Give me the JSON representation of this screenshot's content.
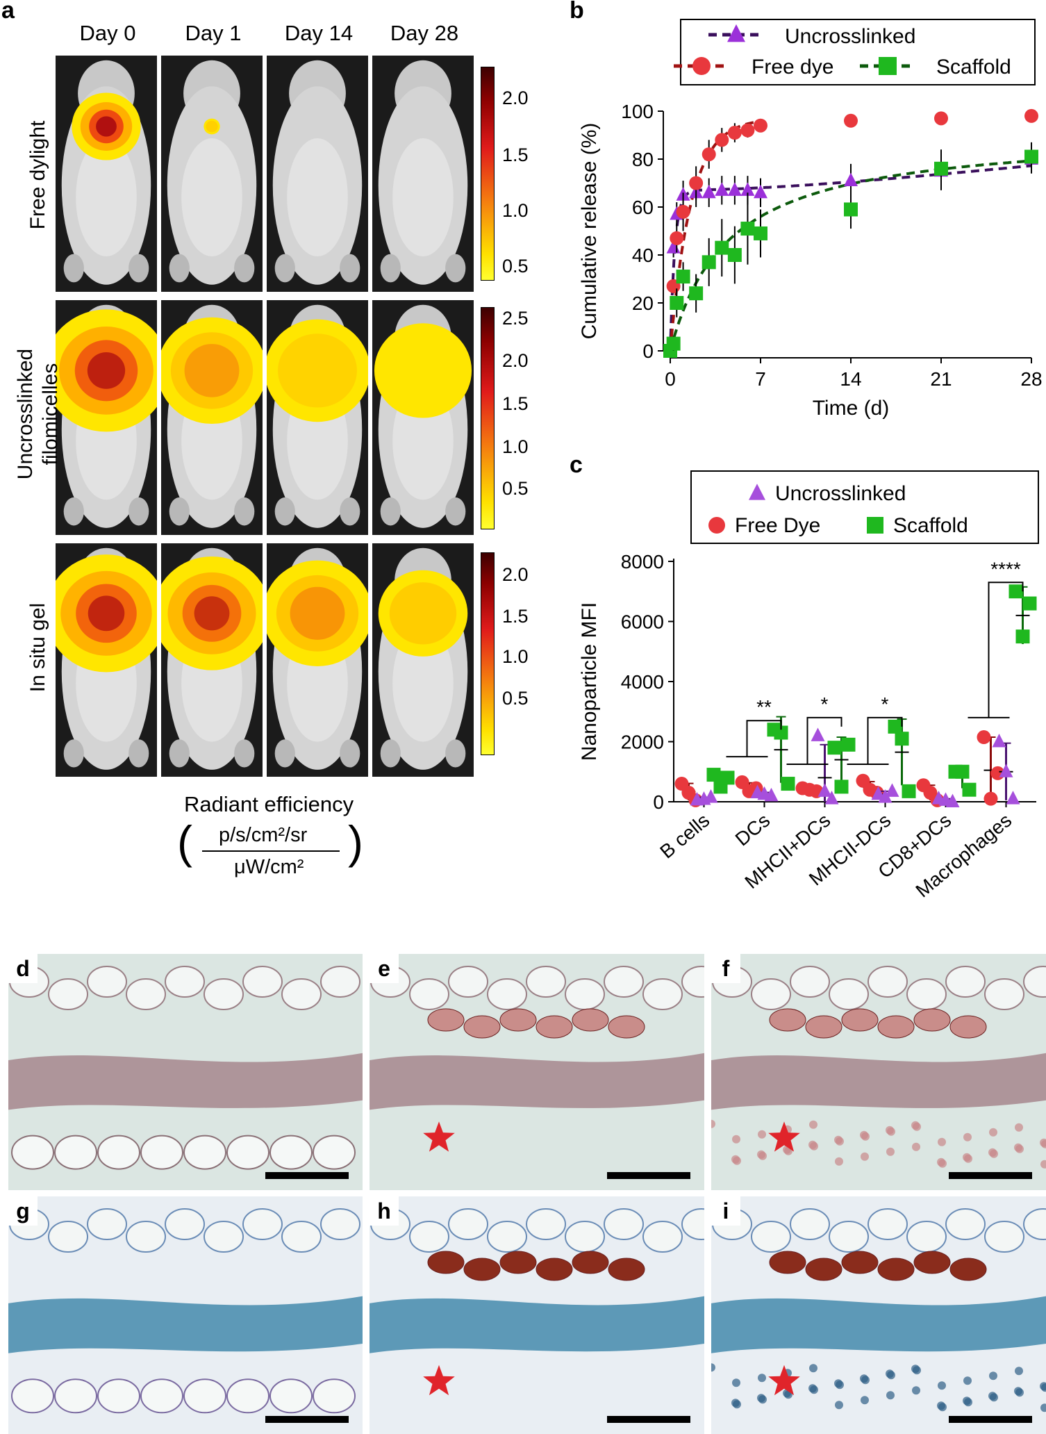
{
  "panel_labels": {
    "a": "a",
    "b": "b",
    "c": "c",
    "d": "d",
    "e": "e",
    "f": "f",
    "g": "g",
    "h": "h",
    "i": "i"
  },
  "panel_a": {
    "days": [
      "Day 0",
      "Day 1",
      "Day 14",
      "Day 28"
    ],
    "rows": [
      {
        "label_lines": [
          "Free dylight"
        ],
        "ticks": [
          "2.0",
          "1.5",
          "1.0",
          "0.5"
        ]
      },
      {
        "label_lines": [
          "Uncrosslinked",
          "filomicelles"
        ],
        "ticks": [
          "2.5",
          "2.0",
          "1.5",
          "1.0",
          "0.5"
        ]
      },
      {
        "label_lines": [
          "In situ gel"
        ],
        "ticks": [
          "2.0",
          "1.5",
          "1.0",
          "0.5"
        ]
      }
    ],
    "unit_title": "Radiant efficiency",
    "unit_numerator": "p/s/cm²/sr",
    "unit_denominator": "μW/cm²",
    "colormap": [
      "#3d0000",
      "#8b0000",
      "#e01b1b",
      "#f47a10",
      "#ffe100",
      "#ffff30"
    ]
  },
  "chart_data": [
    {
      "type": "line",
      "panel": "b",
      "xlabel": "Time (d)",
      "ylabel": "Cumulative release (%)",
      "xlim": [
        0,
        28
      ],
      "ylim": [
        0,
        100
      ],
      "xticks": [
        "0",
        "7",
        "14",
        "21",
        "28"
      ],
      "yticks": [
        "0",
        "20",
        "40",
        "60",
        "80",
        "100"
      ],
      "legend": [
        "Uncrosslinked",
        "Free dye",
        "Scaffold"
      ],
      "series": [
        {
          "name": "Uncrosslinked",
          "color": "#9b30d9",
          "line_color": "#3a0f5c",
          "marker": "triangle",
          "x": [
            0,
            0.25,
            0.5,
            1,
            2,
            3,
            4,
            5,
            6,
            7,
            14,
            21,
            28
          ],
          "y": [
            0,
            43,
            57,
            65,
            66,
            66,
            67,
            67,
            67,
            66,
            71,
            75,
            80
          ],
          "err": [
            0,
            4,
            5,
            6,
            6,
            6,
            6,
            6,
            6,
            6,
            7,
            8,
            6
          ]
        },
        {
          "name": "Free dye",
          "color": "#e8383d",
          "line_color": "#a01212",
          "marker": "circle",
          "x": [
            0,
            0.25,
            0.5,
            1,
            2,
            3,
            4,
            5,
            6,
            7,
            14,
            21,
            28
          ],
          "y": [
            0,
            27,
            47,
            58,
            70,
            82,
            88,
            91,
            92,
            94,
            96,
            97,
            98
          ],
          "err": [
            0,
            3,
            6,
            8,
            7,
            6,
            5,
            4,
            3,
            2,
            0,
            0,
            0
          ]
        },
        {
          "name": "Scaffold",
          "color": "#1fb81f",
          "line_color": "#0c5a0c",
          "marker": "square",
          "x": [
            0,
            0.25,
            0.5,
            1,
            2,
            3,
            4,
            5,
            6,
            7,
            14,
            21,
            28
          ],
          "y": [
            0,
            3,
            20,
            31,
            24,
            37,
            43,
            40,
            51,
            49,
            59,
            76,
            81
          ],
          "err": [
            0,
            3,
            6,
            6,
            8,
            10,
            12,
            12,
            15,
            10,
            8,
            8,
            6
          ]
        }
      ],
      "fit_curves": true
    },
    {
      "type": "scatter",
      "panel": "c",
      "ylabel": "Nanoparticle MFI",
      "ylim": [
        0,
        8000
      ],
      "yticks": [
        "0",
        "2000",
        "4000",
        "6000",
        "8000"
      ],
      "categories": [
        "B cells",
        "DCs",
        "MHCII+DCs",
        "MHCII-DCs",
        "CD8+DCs",
        "Macrophages"
      ],
      "legend": [
        "Uncrosslinked",
        "Free Dye",
        "Scaffold"
      ],
      "groups": [
        {
          "name": "Free Dye",
          "color": "#e8383d",
          "bar_color": "#8b0a0a",
          "marker": "circle",
          "points": [
            [
              600,
              300,
              50
            ],
            [
              650,
              350,
              450
            ],
            [
              450,
              400,
              350
            ],
            [
              700,
              400,
              300
            ],
            [
              550,
              300,
              50
            ],
            [
              2150,
              100,
              950
            ]
          ],
          "mean": [
            330,
            480,
            400,
            470,
            300,
            1050
          ],
          "sd": [
            280,
            150,
            60,
            200,
            250,
            1100
          ]
        },
        {
          "name": "Uncrosslinked",
          "color": "#a64fdc",
          "bar_color": "#4a1370",
          "marker": "triangle",
          "points": [
            [
              60,
              80,
              150
            ],
            [
              300,
              250,
              200
            ],
            [
              2200,
              350,
              100
            ],
            [
              250,
              150,
              350
            ],
            [
              100,
              50,
              0
            ],
            [
              2000,
              1000,
              100
            ]
          ],
          "mean": [
            100,
            250,
            800,
            250,
            50,
            1000
          ],
          "sd": [
            50,
            60,
            1100,
            100,
            50,
            950
          ]
        },
        {
          "name": "Scaffold",
          "color": "#1fb81f",
          "bar_color": "#0c6a0c",
          "marker": "square",
          "points": [
            [
              900,
              500,
              800
            ],
            [
              2400,
              2300,
              600
            ],
            [
              1800,
              500,
              1900
            ],
            [
              2500,
              2100,
              350
            ],
            [
              1000,
              1000,
              400
            ],
            [
              7000,
              5500,
              6600
            ]
          ],
          "mean": [
            730,
            1730,
            1400,
            1650,
            800,
            6200
          ],
          "sd": [
            200,
            1100,
            750,
            1100,
            350,
            950
          ]
        }
      ],
      "significance": [
        {
          "category": "DCs",
          "label": "**"
        },
        {
          "category": "MHCII+DCs",
          "label": "*"
        },
        {
          "category": "MHCII-DCs",
          "label": "*"
        },
        {
          "category": "Macrophages",
          "label": "****"
        }
      ]
    }
  ],
  "histology": [
    {
      "label": "d",
      "stain": "he",
      "star": false
    },
    {
      "label": "e",
      "stain": "he",
      "star": true
    },
    {
      "label": "f",
      "stain": "he",
      "star": true
    },
    {
      "label": "g",
      "stain": "trichrome",
      "star": false
    },
    {
      "label": "h",
      "stain": "trichrome",
      "star": true
    },
    {
      "label": "i",
      "stain": "trichrome",
      "star": true
    }
  ]
}
